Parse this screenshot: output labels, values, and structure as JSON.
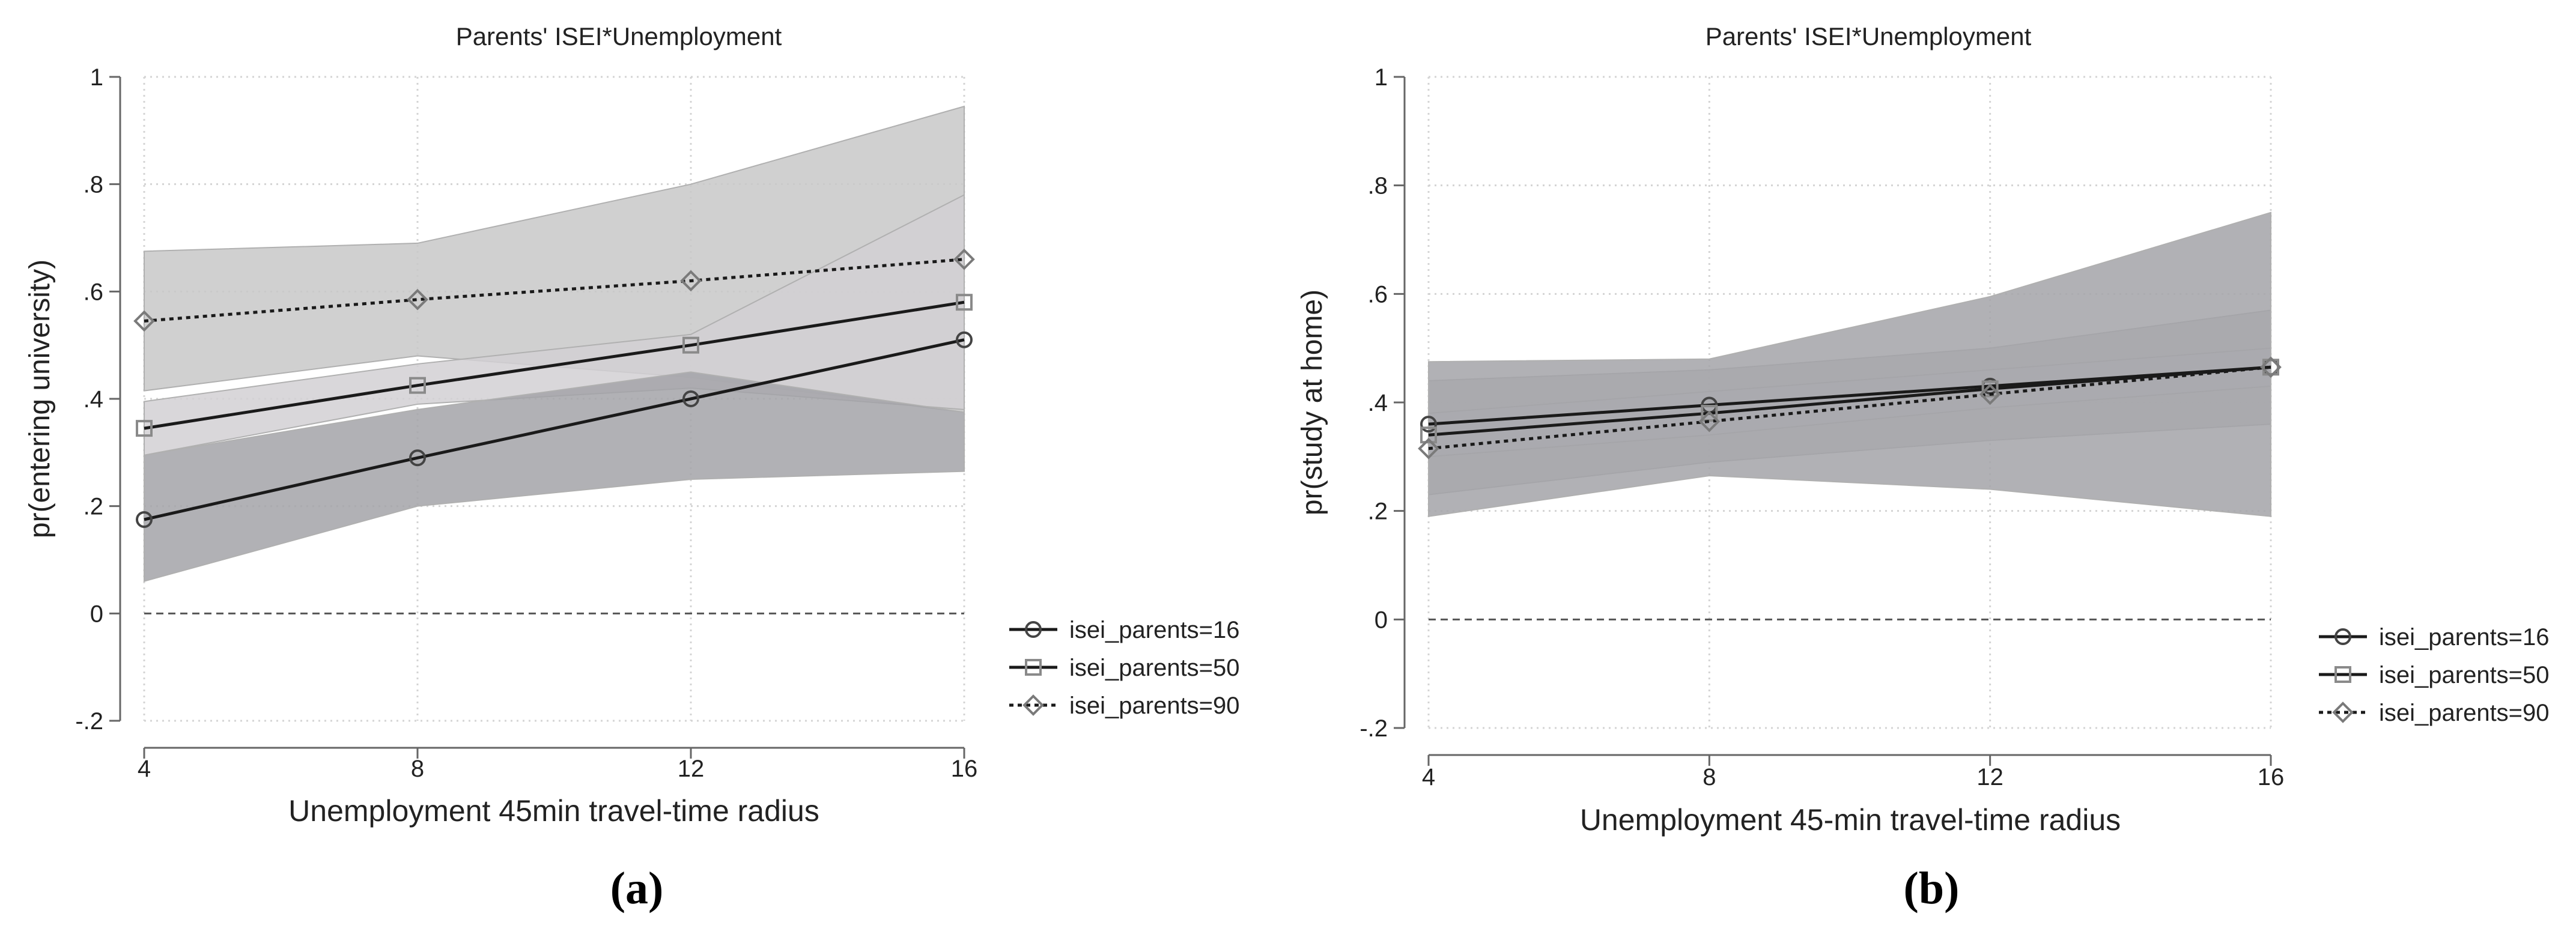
{
  "colors": {
    "band_16": "#a3a3a8",
    "band_50": "#d2d0d4",
    "band_90": "#c8c8c8",
    "line": "#1a1a1a",
    "marker_16": "#444444",
    "marker_50": "#8a8a8a",
    "marker_90": "#7a7a7a",
    "grid": "#d4d4d4",
    "axis": "#666666",
    "zero_line": "#555555"
  },
  "chart_data": [
    {
      "type": "line",
      "panel": "a",
      "panel_label": "(a)",
      "title": "Parents' ISEI*Unemployment",
      "xlabel": "Unemployment 45min travel-time radius",
      "ylabel": "pr(entering university)",
      "x": [
        4,
        8,
        12,
        16
      ],
      "xlim": [
        4,
        16
      ],
      "ylim": [
        -0.2,
        1
      ],
      "xticks": [
        4,
        8,
        12,
        16
      ],
      "xtick_labels": [
        "4",
        "8",
        "12",
        "16"
      ],
      "yticks": [
        -0.2,
        0,
        0.2,
        0.4,
        0.6,
        0.8,
        1
      ],
      "ytick_labels": [
        "-.2",
        "0",
        ".2",
        ".4",
        ".6",
        ".8",
        "1"
      ],
      "reference_line_y": 0,
      "grid": true,
      "legend_position": "right",
      "series": [
        {
          "name": "isei_parents=16",
          "key": "16",
          "marker": "circle",
          "dash": "solid",
          "values": [
            0.175,
            0.29,
            0.4,
            0.51
          ],
          "ci_low": [
            0.06,
            0.2,
            0.25,
            0.265
          ],
          "ci_high": [
            0.295,
            0.38,
            0.45,
            0.375
          ]
        },
        {
          "name": "isei_parents=50",
          "key": "50",
          "marker": "square",
          "dash": "solid",
          "values": [
            0.345,
            0.425,
            0.5,
            0.58
          ],
          "ci_low": [
            0.295,
            0.39,
            0.42,
            0.38
          ],
          "ci_high": [
            0.395,
            0.465,
            0.52,
            0.78
          ]
        },
        {
          "name": "isei_parents=90",
          "key": "90",
          "marker": "diamond",
          "dash": "dotted",
          "values": [
            0.545,
            0.585,
            0.62,
            0.66
          ],
          "ci_low": [
            0.415,
            0.48,
            0.44,
            0.375
          ],
          "ci_high": [
            0.675,
            0.69,
            0.8,
            0.945
          ]
        }
      ]
    },
    {
      "type": "line",
      "panel": "b",
      "panel_label": "(b)",
      "title": "Parents' ISEI*Unemployment",
      "xlabel": "Unemployment 45-min travel-time radius",
      "ylabel": "pr(study at home)",
      "x": [
        4,
        8,
        12,
        16
      ],
      "xlim": [
        4,
        16
      ],
      "ylim": [
        -0.2,
        1
      ],
      "xticks": [
        4,
        8,
        12,
        16
      ],
      "xtick_labels": [
        "4",
        "8",
        "12",
        "16"
      ],
      "yticks": [
        -0.2,
        0,
        0.2,
        0.4,
        0.6,
        0.8,
        1
      ],
      "ytick_labels": [
        "-.2",
        "0",
        ".2",
        ".4",
        ".6",
        ".8",
        "1"
      ],
      "reference_line_y": 0,
      "grid": true,
      "legend_position": "right",
      "series": [
        {
          "name": "isei_parents=16",
          "key": "16",
          "marker": "circle",
          "dash": "solid",
          "values": [
            0.36,
            0.395,
            0.43,
            0.465
          ],
          "ci_low": [
            0.19,
            0.265,
            0.24,
            0.19
          ],
          "ci_high": [
            0.475,
            0.48,
            0.595,
            0.75
          ]
        },
        {
          "name": "isei_parents=50",
          "key": "50",
          "marker": "square",
          "dash": "solid",
          "values": [
            0.34,
            0.38,
            0.425,
            0.465
          ],
          "ci_low": [
            0.3,
            0.34,
            0.39,
            0.43
          ],
          "ci_high": [
            0.38,
            0.42,
            0.46,
            0.5
          ]
        },
        {
          "name": "isei_parents=90",
          "key": "90",
          "marker": "diamond",
          "dash": "dotted",
          "values": [
            0.315,
            0.365,
            0.415,
            0.465
          ],
          "ci_low": [
            0.23,
            0.29,
            0.33,
            0.36
          ],
          "ci_high": [
            0.44,
            0.46,
            0.5,
            0.57
          ]
        }
      ]
    }
  ]
}
